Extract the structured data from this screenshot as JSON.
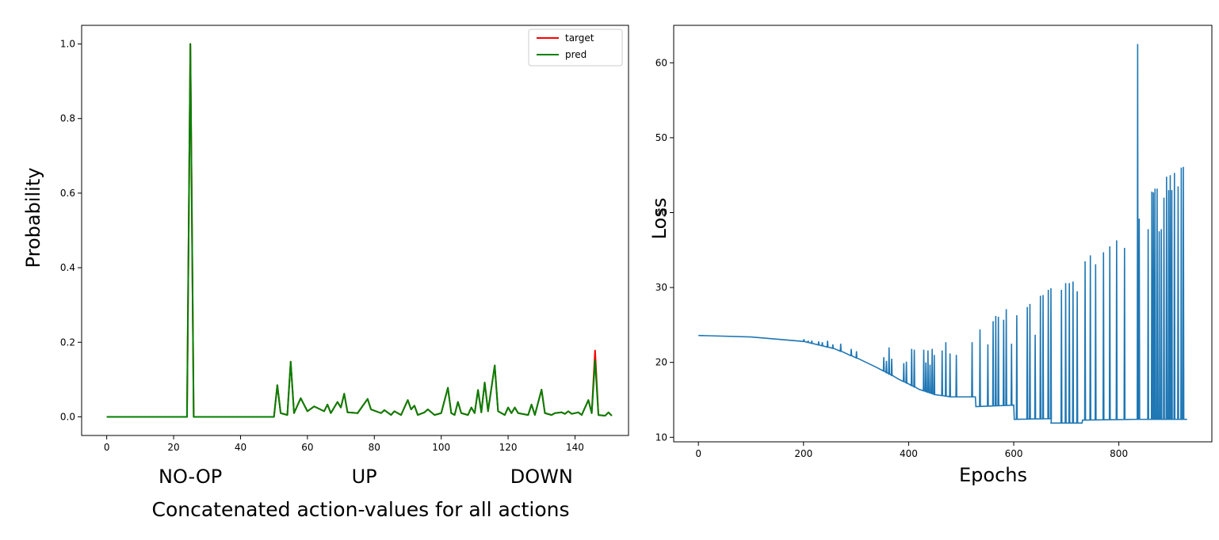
{
  "chart_data": [
    {
      "type": "line",
      "title": "",
      "xlabel": "Concatenated action-values for all actions",
      "ylabel": "Probability",
      "xlim": [
        -7.5,
        156
      ],
      "ylim": [
        -0.05,
        1.05
      ],
      "xticks": [
        0,
        20,
        40,
        60,
        80,
        100,
        120,
        140
      ],
      "yticks": [
        0.0,
        0.2,
        0.4,
        0.6,
        0.8,
        1.0
      ],
      "xtick_labels": [
        "0",
        "20",
        "40",
        "60",
        "80",
        "100",
        "120",
        "140"
      ],
      "ytick_labels": [
        "0.0",
        "0.2",
        "0.4",
        "0.6",
        "0.8",
        "1.0"
      ],
      "action_labels": [
        {
          "label": "NO-OP",
          "x": 25
        },
        {
          "label": "UP",
          "x": 77
        },
        {
          "label": "DOWN",
          "x": 130
        }
      ],
      "grid": false,
      "legend_position": "top-right",
      "series": [
        {
          "name": "target",
          "color": "#ff0000",
          "points": [
            [
              0,
              0
            ],
            [
              24,
              0
            ],
            [
              25,
              1.0
            ],
            [
              26,
              0
            ],
            [
              50,
              0
            ],
            [
              51,
              0.085
            ],
            [
              52,
              0.01
            ],
            [
              54,
              0.005
            ],
            [
              55,
              0.148
            ],
            [
              56,
              0.01
            ],
            [
              58,
              0.05
            ],
            [
              60,
              0.015
            ],
            [
              62,
              0.028
            ],
            [
              65,
              0.015
            ],
            [
              66,
              0.033
            ],
            [
              67,
              0.01
            ],
            [
              69,
              0.04
            ],
            [
              70,
              0.025
            ],
            [
              71,
              0.062
            ],
            [
              72,
              0.012
            ],
            [
              75,
              0.01
            ],
            [
              78,
              0.048
            ],
            [
              79,
              0.02
            ],
            [
              82,
              0.01
            ],
            [
              83,
              0.018
            ],
            [
              85,
              0.005
            ],
            [
              86,
              0.015
            ],
            [
              88,
              0.005
            ],
            [
              90,
              0.045
            ],
            [
              91,
              0.02
            ],
            [
              92,
              0.03
            ],
            [
              93,
              0.005
            ],
            [
              95,
              0.012
            ],
            [
              96,
              0.02
            ],
            [
              98,
              0.005
            ],
            [
              100,
              0.01
            ],
            [
              102,
              0.078
            ],
            [
              103,
              0.01
            ],
            [
              104,
              0.005
            ],
            [
              105,
              0.04
            ],
            [
              106,
              0.01
            ],
            [
              108,
              0.005
            ],
            [
              109,
              0.025
            ],
            [
              110,
              0.01
            ],
            [
              111,
              0.072
            ],
            [
              112,
              0.012
            ],
            [
              113,
              0.092
            ],
            [
              114,
              0.015
            ],
            [
              116,
              0.138
            ],
            [
              117,
              0.015
            ],
            [
              119,
              0.005
            ],
            [
              120,
              0.025
            ],
            [
              121,
              0.01
            ],
            [
              122,
              0.025
            ],
            [
              123,
              0.01
            ],
            [
              126,
              0.005
            ],
            [
              127,
              0.033
            ],
            [
              128,
              0.005
            ],
            [
              130,
              0.073
            ],
            [
              131,
              0.01
            ],
            [
              133,
              0.005
            ],
            [
              134,
              0.01
            ],
            [
              136,
              0.012
            ],
            [
              137,
              0.008
            ],
            [
              138,
              0.015
            ],
            [
              139,
              0.008
            ],
            [
              141,
              0.012
            ],
            [
              142,
              0.005
            ],
            [
              144,
              0.045
            ],
            [
              145,
              0.01
            ],
            [
              146,
              0.178
            ],
            [
              147,
              0.005
            ],
            [
              149,
              0.003
            ],
            [
              150,
              0.012
            ],
            [
              151,
              0.003
            ]
          ]
        },
        {
          "name": "pred",
          "color": "#008000",
          "points": [
            [
              0,
              0
            ],
            [
              24,
              0
            ],
            [
              25,
              1.0
            ],
            [
              26,
              0
            ],
            [
              50,
              0
            ],
            [
              51,
              0.085
            ],
            [
              52,
              0.01
            ],
            [
              54,
              0.005
            ],
            [
              55,
              0.148
            ],
            [
              56,
              0.01
            ],
            [
              58,
              0.05
            ],
            [
              60,
              0.015
            ],
            [
              62,
              0.028
            ],
            [
              65,
              0.015
            ],
            [
              66,
              0.033
            ],
            [
              67,
              0.01
            ],
            [
              69,
              0.04
            ],
            [
              70,
              0.025
            ],
            [
              71,
              0.062
            ],
            [
              72,
              0.012
            ],
            [
              75,
              0.01
            ],
            [
              78,
              0.048
            ],
            [
              79,
              0.02
            ],
            [
              82,
              0.01
            ],
            [
              83,
              0.018
            ],
            [
              85,
              0.005
            ],
            [
              86,
              0.015
            ],
            [
              88,
              0.005
            ],
            [
              90,
              0.045
            ],
            [
              91,
              0.02
            ],
            [
              92,
              0.03
            ],
            [
              93,
              0.005
            ],
            [
              95,
              0.012
            ],
            [
              96,
              0.02
            ],
            [
              98,
              0.005
            ],
            [
              100,
              0.01
            ],
            [
              102,
              0.078
            ],
            [
              103,
              0.01
            ],
            [
              104,
              0.005
            ],
            [
              105,
              0.04
            ],
            [
              106,
              0.01
            ],
            [
              108,
              0.005
            ],
            [
              109,
              0.025
            ],
            [
              110,
              0.01
            ],
            [
              111,
              0.072
            ],
            [
              112,
              0.012
            ],
            [
              113,
              0.092
            ],
            [
              114,
              0.015
            ],
            [
              116,
              0.138
            ],
            [
              117,
              0.015
            ],
            [
              119,
              0.005
            ],
            [
              120,
              0.025
            ],
            [
              121,
              0.01
            ],
            [
              122,
              0.025
            ],
            [
              123,
              0.01
            ],
            [
              126,
              0.005
            ],
            [
              127,
              0.033
            ],
            [
              128,
              0.005
            ],
            [
              130,
              0.073
            ],
            [
              131,
              0.01
            ],
            [
              133,
              0.005
            ],
            [
              134,
              0.01
            ],
            [
              136,
              0.012
            ],
            [
              137,
              0.008
            ],
            [
              138,
              0.015
            ],
            [
              139,
              0.008
            ],
            [
              141,
              0.012
            ],
            [
              142,
              0.005
            ],
            [
              144,
              0.045
            ],
            [
              145,
              0.01
            ],
            [
              146,
              0.152
            ],
            [
              147,
              0.005
            ],
            [
              149,
              0.003
            ],
            [
              150,
              0.012
            ],
            [
              151,
              0.003
            ]
          ]
        }
      ]
    },
    {
      "type": "line",
      "title": "",
      "xlabel": "Epochs",
      "ylabel": "Loss",
      "xlim": [
        -47,
        977
      ],
      "ylim": [
        9.4,
        65
      ],
      "xticks": [
        0,
        200,
        400,
        600,
        800
      ],
      "yticks": [
        10,
        20,
        30,
        40,
        50,
        60
      ],
      "xtick_labels": [
        "0",
        "200",
        "400",
        "600",
        "800"
      ],
      "ytick_labels": [
        "10",
        "20",
        "30",
        "40",
        "50",
        "60"
      ],
      "grid": false,
      "color": "#1f77b4",
      "baseline": [
        [
          0,
          23.6
        ],
        [
          100,
          23.4
        ],
        [
          200,
          22.8
        ],
        [
          260,
          21.8
        ],
        [
          300,
          20.6
        ],
        [
          340,
          19.3
        ],
        [
          380,
          17.8
        ],
        [
          420,
          16.4
        ],
        [
          450,
          15.7
        ],
        [
          480,
          15.4
        ],
        [
          527,
          15.4
        ],
        [
          528,
          14.1
        ],
        [
          600,
          14.3
        ],
        [
          601,
          12.4
        ],
        [
          670,
          12.5
        ],
        [
          671,
          11.9
        ],
        [
          730,
          11.9
        ],
        [
          731,
          12.3
        ],
        [
          830,
          12.4
        ],
        [
          930,
          12.4
        ]
      ],
      "spikes": [
        [
          200,
          23.1
        ],
        [
          208,
          22.9
        ],
        [
          215,
          22.9
        ],
        [
          228,
          22.8
        ],
        [
          235,
          22.7
        ],
        [
          245,
          22.9
        ],
        [
          255,
          22.4
        ],
        [
          270,
          22.5
        ],
        [
          290,
          21.8
        ],
        [
          300,
          21.5
        ],
        [
          352,
          20.7
        ],
        [
          357,
          20.2
        ],
        [
          362,
          22.0
        ],
        [
          367,
          20.5
        ],
        [
          390,
          19.9
        ],
        [
          395,
          20.1
        ],
        [
          405,
          21.8
        ],
        [
          410,
          21.7
        ],
        [
          428,
          21.7
        ],
        [
          432,
          20.0
        ],
        [
          436,
          21.6
        ],
        [
          440,
          19.7
        ],
        [
          444,
          21.8
        ],
        [
          448,
          21.0
        ],
        [
          463,
          21.6
        ],
        [
          470,
          22.7
        ],
        [
          478,
          21.2
        ],
        [
          490,
          21.0
        ],
        [
          520,
          22.7
        ],
        [
          535,
          24.4
        ],
        [
          550,
          22.4
        ],
        [
          560,
          25.5
        ],
        [
          565,
          26.2
        ],
        [
          570,
          26.1
        ],
        [
          580,
          25.7
        ],
        [
          585,
          27.1
        ],
        [
          595,
          22.5
        ],
        [
          605,
          26.3
        ],
        [
          625,
          27.4
        ],
        [
          630,
          27.8
        ],
        [
          640,
          23.7
        ],
        [
          650,
          28.9
        ],
        [
          655,
          29.0
        ],
        [
          665,
          29.7
        ],
        [
          670,
          29.9
        ],
        [
          690,
          29.7
        ],
        [
          698,
          30.6
        ],
        [
          705,
          30.6
        ],
        [
          712,
          30.8
        ],
        [
          720,
          29.5
        ],
        [
          735,
          33.5
        ],
        [
          745,
          34.3
        ],
        [
          755,
          33.1
        ],
        [
          770,
          34.7
        ],
        [
          782,
          35.5
        ],
        [
          795,
          36.3
        ],
        [
          810,
          35.3
        ],
        [
          835,
          62.5
        ],
        [
          838,
          39.2
        ],
        [
          855,
          37.8
        ],
        [
          862,
          42.8
        ],
        [
          865,
          42.7
        ],
        [
          868,
          43.2
        ],
        [
          872,
          43.2
        ],
        [
          876,
          37.5
        ],
        [
          880,
          37.8
        ],
        [
          885,
          42.0
        ],
        [
          890,
          44.8
        ],
        [
          894,
          43.0
        ],
        [
          897,
          45.0
        ],
        [
          900,
          43.0
        ],
        [
          905,
          45.3
        ],
        [
          912,
          43.5
        ],
        [
          918,
          46.0
        ],
        [
          922,
          46.1
        ]
      ]
    }
  ]
}
